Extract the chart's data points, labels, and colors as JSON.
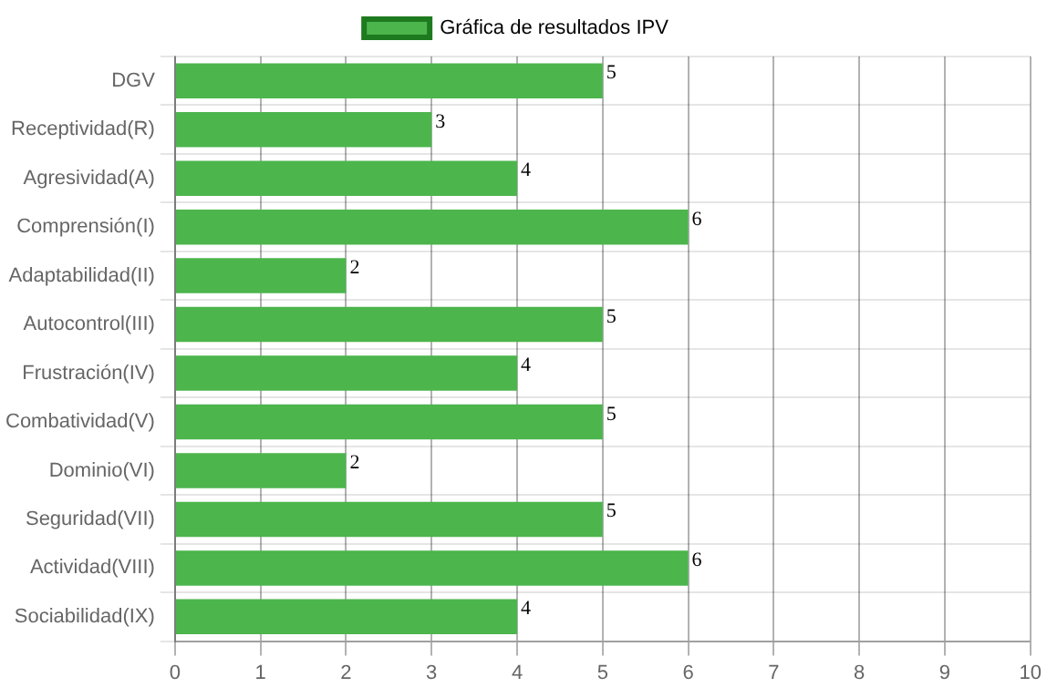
{
  "chart_data": {
    "type": "bar",
    "orientation": "horizontal",
    "categories": [
      "DGV",
      "Receptividad(R)",
      "Agresividad(A)",
      "Comprensión(I)",
      "Adaptabilidad(II)",
      "Autocontrol(III)",
      "Frustración(IV)",
      "Combatividad(V)",
      "Dominio(VI)",
      "Seguridad(VII)",
      "Actividad(VIII)",
      "Sociabilidad(IX)"
    ],
    "series": [
      {
        "name": "Gráfica de resultados IPV",
        "color": "#4cb54c",
        "values": [
          5,
          3,
          4,
          6,
          2,
          5,
          4,
          5,
          2,
          5,
          6,
          4
        ]
      }
    ],
    "xlim": [
      0,
      10
    ],
    "xticks": [
      0,
      1,
      2,
      3,
      4,
      5,
      6,
      7,
      8,
      9,
      10
    ],
    "grid": true,
    "legend": "top",
    "data_labels": true
  }
}
